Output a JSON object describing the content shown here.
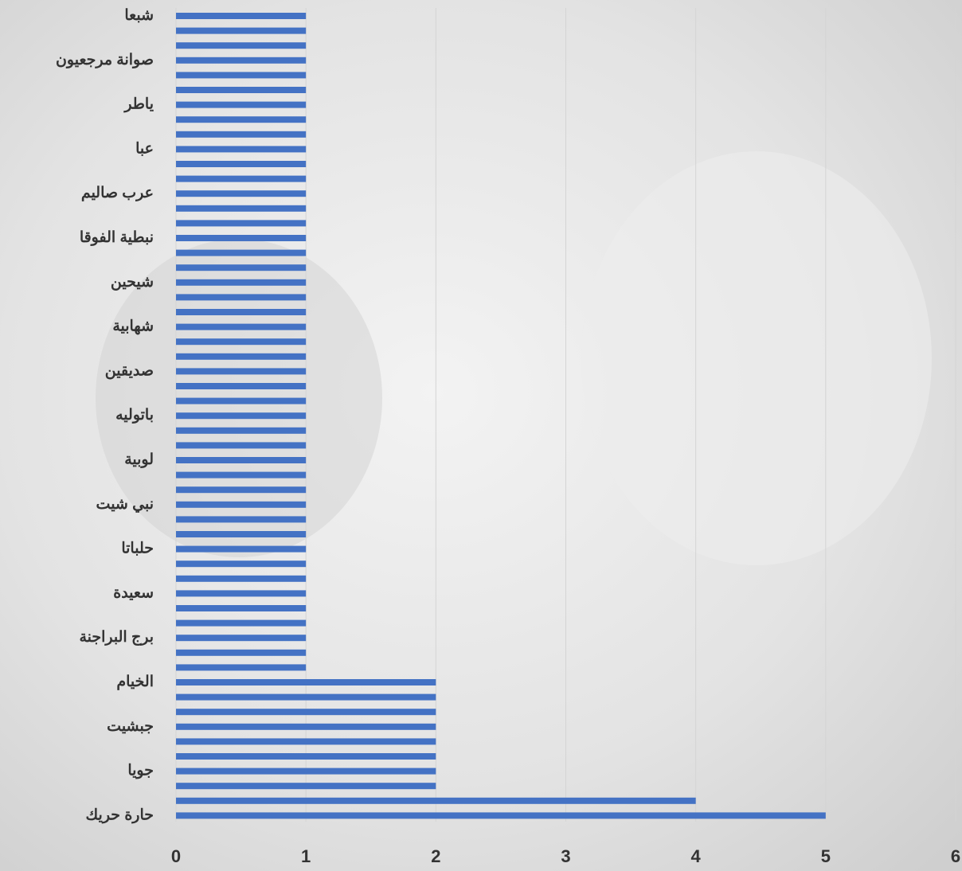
{
  "chart_data": {
    "type": "bar",
    "orientation": "horizontal",
    "categories": [
      "شبعا",
      null,
      null,
      "صوانة مرجعيون",
      null,
      null,
      "ياطر",
      null,
      null,
      "عبا",
      null,
      null,
      "عرب صاليم",
      null,
      null,
      "نبطية الفوقا",
      null,
      null,
      "شيحين",
      null,
      null,
      "شهابية",
      null,
      null,
      "صديقين",
      null,
      null,
      "باتوليه",
      null,
      null,
      "لوبية",
      null,
      null,
      "نبي شيت",
      null,
      null,
      "حلباتا",
      null,
      null,
      "سعيدة",
      null,
      null,
      "برج البراجنة",
      null,
      null,
      "الخيام",
      null,
      null,
      "جبشيت",
      null,
      null,
      "جويا",
      null,
      null,
      "حارة حريك"
    ],
    "values": [
      1,
      1,
      1,
      1,
      1,
      1,
      1,
      1,
      1,
      1,
      1,
      1,
      1,
      1,
      1,
      1,
      1,
      1,
      1,
      1,
      1,
      1,
      1,
      1,
      1,
      1,
      1,
      1,
      1,
      1,
      1,
      1,
      1,
      1,
      1,
      1,
      1,
      1,
      1,
      1,
      1,
      1,
      1,
      1,
      1,
      2,
      2,
      2,
      2,
      2,
      2,
      2,
      2,
      4,
      5
    ],
    "color": "#4472c4",
    "xlim": [
      0,
      6
    ],
    "xticks": [
      0,
      1,
      2,
      3,
      4,
      5,
      6
    ],
    "grid": true
  }
}
